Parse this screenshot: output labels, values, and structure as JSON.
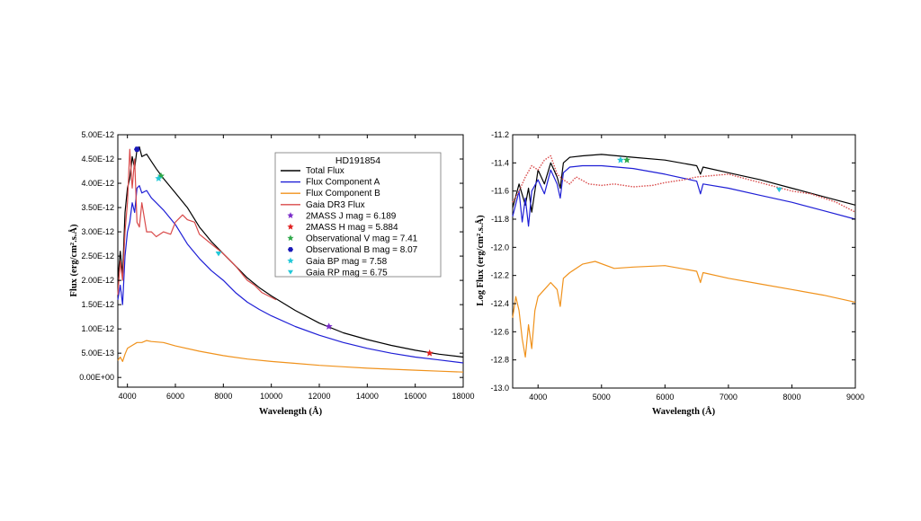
{
  "chart_data": [
    {
      "type": "line",
      "title": "HD191854",
      "xlabel": "Wavelength (Å)",
      "ylabel": "Flux (erg/cm².s.Å)",
      "xlim": [
        3600,
        18000
      ],
      "ylim": [
        -2e-13,
        5e-12
      ],
      "xticks": [
        4000,
        6000,
        8000,
        10000,
        12000,
        14000,
        16000,
        18000
      ],
      "xtick_labels": [
        "4000",
        "6000",
        "8000",
        "10000",
        "12000",
        "14000",
        "16000",
        "18000"
      ],
      "yticks": [
        0,
        5e-13,
        1e-12,
        1.5e-12,
        2e-12,
        2.5e-12,
        3e-12,
        3.5e-12,
        4e-12,
        4.5e-12,
        5e-12
      ],
      "ytick_labels": [
        "0.00E+00",
        "5.00E-13",
        "1.00E-12",
        "1.50E-12",
        "2.00E-12",
        "2.50E-12",
        "3.00E-12",
        "3.50E-12",
        "4.00E-12",
        "4.50E-12",
        "5.00E-12"
      ],
      "grid": false,
      "legend_position": "top-right",
      "series": [
        {
          "name": "Total Flux",
          "color": "#000000",
          "style": "solid",
          "x": [
            3600,
            3700,
            3800,
            3900,
            4000,
            4100,
            4200,
            4300,
            4400,
            4500,
            4600,
            4800,
            5000,
            5200,
            5500,
            6000,
            6500,
            7000,
            7500,
            8000,
            8500,
            9000,
            9500,
            10000,
            11000,
            12000,
            13000,
            14000,
            15000,
            16000,
            17000,
            18000
          ],
          "y": [
            2e-12,
            2.6e-12,
            2.1e-12,
            3.4e-12,
            3.9e-12,
            4.1e-12,
            4.55e-12,
            4.3e-12,
            4.7e-12,
            4.75e-12,
            4.55e-12,
            4.6e-12,
            4.45e-12,
            4.3e-12,
            4.1e-12,
            3.8e-12,
            3.5e-12,
            3.1e-12,
            2.8e-12,
            2.55e-12,
            2.3e-12,
            2.05e-12,
            1.85e-12,
            1.68e-12,
            1.38e-12,
            1.12e-12,
            9.2e-13,
            7.8e-13,
            6.6e-13,
            5.6e-13,
            4.8e-13,
            4.2e-13
          ]
        },
        {
          "name": "Flux Component A",
          "color": "#1f1fd6",
          "style": "solid",
          "x": [
            3600,
            3700,
            3800,
            3900,
            4000,
            4100,
            4200,
            4300,
            4400,
            4500,
            4600,
            4800,
            5000,
            5200,
            5500,
            6000,
            6500,
            7000,
            7500,
            8000,
            8500,
            9000,
            9500,
            10000,
            11000,
            12000,
            13000,
            14000,
            15000,
            16000,
            17000,
            18000
          ],
          "y": [
            1.6e-12,
            1.9e-12,
            1.5e-12,
            2.5e-12,
            3e-12,
            3.2e-12,
            3.6e-12,
            3.4e-12,
            3.9e-12,
            3.95e-12,
            3.8e-12,
            3.85e-12,
            3.7e-12,
            3.6e-12,
            3.45e-12,
            3.15e-12,
            2.75e-12,
            2.45e-12,
            2.2e-12,
            2e-12,
            1.75e-12,
            1.55e-12,
            1.4e-12,
            1.27e-12,
            1.05e-12,
            8.7e-13,
            7.2e-13,
            6e-13,
            5e-13,
            4.2e-13,
            3.6e-13,
            3e-13
          ]
        },
        {
          "name": "Flux Component B",
          "color": "#f0921c",
          "style": "solid",
          "x": [
            3600,
            3700,
            3800,
            3900,
            4000,
            4200,
            4400,
            4600,
            4800,
            5000,
            5500,
            6000,
            7000,
            8000,
            9000,
            10000,
            11000,
            12000,
            13000,
            14000,
            15000,
            16000,
            17000,
            18000
          ],
          "y": [
            3.5e-13,
            4.2e-13,
            3.3e-13,
            4.8e-13,
            6e-13,
            6.6e-13,
            7.2e-13,
            7.2e-13,
            7.6e-13,
            7.4e-13,
            7.2e-13,
            6.5e-13,
            5.4e-13,
            4.5e-13,
            3.8e-13,
            3.3e-13,
            2.9e-13,
            2.5e-13,
            2.2e-13,
            1.9e-13,
            1.7e-13,
            1.5e-13,
            1.3e-13,
            1.1e-13
          ]
        },
        {
          "name": "Gaia DR3 Flux",
          "color": "#d94a4a",
          "style": "solid",
          "x": [
            3600,
            3700,
            3800,
            3900,
            4000,
            4100,
            4200,
            4300,
            4400,
            4500,
            4600,
            4800,
            5000,
            5200,
            5500,
            5800,
            6000,
            6300,
            6500,
            6800,
            7000,
            7500,
            8000,
            8500,
            9000,
            9300,
            9600,
            10000,
            10200
          ],
          "y": [
            1.7e-12,
            2.4e-12,
            2e-12,
            3e-12,
            3.6e-12,
            4.7e-12,
            3.9e-12,
            4.5e-12,
            3.2e-12,
            3.1e-12,
            3.6e-12,
            3e-12,
            3e-12,
            2.9e-12,
            3e-12,
            2.95e-12,
            3.2e-12,
            3.35e-12,
            3.25e-12,
            3.2e-12,
            2.95e-12,
            2.75e-12,
            2.55e-12,
            2.3e-12,
            2e-12,
            1.9e-12,
            1.75e-12,
            1.65e-12,
            1.6e-12
          ]
        }
      ],
      "points": [
        {
          "name": "2MASS J mag = 6.189",
          "color": "#7a2cc9",
          "marker": "star",
          "x": 12400,
          "y": 1.05e-12
        },
        {
          "name": "2MASS H mag = 5.884",
          "color": "#e02020",
          "marker": "star",
          "x": 16600,
          "y": 5e-13
        },
        {
          "name": "Observational V mag = 7.41",
          "color": "#2ea84a",
          "marker": "star",
          "x": 5400,
          "y": 4.15e-12
        },
        {
          "name": "Observational B mag = 8.07",
          "color": "#1a1ab8",
          "marker": "hexagon",
          "x": 4400,
          "y": 4.7e-12
        },
        {
          "name": "Gaia BP mag = 7.58",
          "color": "#23c8d8",
          "marker": "star",
          "x": 5300,
          "y": 4.1e-12
        },
        {
          "name": "Gaia RP mag = 6.75",
          "color": "#23c8d8",
          "marker": "triangle-down",
          "x": 7800,
          "y": 2.55e-12
        }
      ]
    },
    {
      "type": "line",
      "title": "",
      "xlabel": "Wavelength (Å)",
      "ylabel": "Log Flux (erg/cm².s.Å)",
      "xlim": [
        3600,
        9000
      ],
      "ylim": [
        -13.0,
        -11.2
      ],
      "xticks": [
        4000,
        5000,
        6000,
        7000,
        8000,
        9000
      ],
      "xtick_labels": [
        "4000",
        "5000",
        "6000",
        "7000",
        "8000",
        "9000"
      ],
      "yticks": [
        -13.0,
        -12.8,
        -12.6,
        -12.4,
        -12.2,
        -12.0,
        -11.8,
        -11.6,
        -11.4,
        -11.2
      ],
      "ytick_labels": [
        "-13.0",
        "-12.8",
        "-12.6",
        "-12.4",
        "-12.2",
        "-12.0",
        "-11.8",
        "-11.6",
        "-11.4",
        "-11.2"
      ],
      "grid": false,
      "series": [
        {
          "name": "Total Flux",
          "color": "#000000",
          "style": "solid",
          "x": [
            3600,
            3700,
            3800,
            3850,
            3900,
            4000,
            4100,
            4200,
            4300,
            4350,
            4400,
            4500,
            4700,
            5000,
            5500,
            6000,
            6500,
            6560,
            6600,
            7000,
            7500,
            8000,
            8500,
            9000
          ],
          "y": [
            -11.72,
            -11.55,
            -11.7,
            -11.58,
            -11.75,
            -11.45,
            -11.55,
            -11.4,
            -11.5,
            -11.58,
            -11.4,
            -11.36,
            -11.35,
            -11.34,
            -11.36,
            -11.38,
            -11.42,
            -11.48,
            -11.43,
            -11.47,
            -11.52,
            -11.58,
            -11.64,
            -11.7
          ]
        },
        {
          "name": "Flux Component A",
          "color": "#1f1fd6",
          "style": "solid",
          "x": [
            3600,
            3700,
            3750,
            3800,
            3850,
            3900,
            4000,
            4100,
            4200,
            4300,
            4350,
            4400,
            4500,
            4700,
            5000,
            5500,
            6000,
            6500,
            6560,
            6600,
            7000,
            7500,
            8000,
            8500,
            9000
          ],
          "y": [
            -11.78,
            -11.6,
            -11.82,
            -11.65,
            -11.85,
            -11.6,
            -11.52,
            -11.62,
            -11.45,
            -11.55,
            -11.65,
            -11.47,
            -11.43,
            -11.42,
            -11.42,
            -11.44,
            -11.48,
            -11.53,
            -11.62,
            -11.55,
            -11.58,
            -11.63,
            -11.68,
            -11.74,
            -11.8
          ]
        },
        {
          "name": "Flux Component B",
          "color": "#f0921c",
          "style": "solid",
          "x": [
            3600,
            3650,
            3700,
            3750,
            3800,
            3850,
            3900,
            3950,
            4000,
            4100,
            4200,
            4300,
            4350,
            4400,
            4500,
            4700,
            4900,
            5200,
            5500,
            6000,
            6500,
            6560,
            6600,
            7000,
            7500,
            8000,
            8500,
            9000
          ],
          "y": [
            -12.5,
            -12.35,
            -12.45,
            -12.65,
            -12.78,
            -12.55,
            -12.72,
            -12.45,
            -12.35,
            -12.3,
            -12.25,
            -12.3,
            -12.42,
            -12.22,
            -12.18,
            -12.12,
            -12.1,
            -12.15,
            -12.14,
            -12.13,
            -12.17,
            -12.25,
            -12.18,
            -12.22,
            -12.26,
            -12.3,
            -12.34,
            -12.39
          ]
        },
        {
          "name": "Gaia DR3 Flux",
          "color": "#d94a4a",
          "style": "dotted",
          "x": [
            3600,
            3700,
            3800,
            3900,
            4000,
            4100,
            4200,
            4300,
            4400,
            4500,
            4600,
            4800,
            5000,
            5200,
            5500,
            5800,
            6000,
            6300,
            6500,
            7000,
            7500,
            8000,
            8300,
            8500,
            8700,
            9000
          ],
          "y": [
            -11.68,
            -11.6,
            -11.5,
            -11.42,
            -11.45,
            -11.38,
            -11.35,
            -11.48,
            -11.52,
            -11.55,
            -11.5,
            -11.55,
            -11.56,
            -11.55,
            -11.57,
            -11.56,
            -11.54,
            -11.52,
            -11.5,
            -11.48,
            -11.54,
            -11.6,
            -11.62,
            -11.65,
            -11.68,
            -11.75
          ]
        }
      ],
      "points": [
        {
          "name": "Observational V mag = 7.41",
          "color": "#2ea84a",
          "marker": "star",
          "x": 5400,
          "y": -11.38
        },
        {
          "name": "Gaia BP mag = 7.58",
          "color": "#23c8d8",
          "marker": "star",
          "x": 5300,
          "y": -11.38
        },
        {
          "name": "Gaia RP mag = 6.75",
          "color": "#23c8d8",
          "marker": "triangle-down",
          "x": 7800,
          "y": -11.59
        }
      ]
    }
  ]
}
